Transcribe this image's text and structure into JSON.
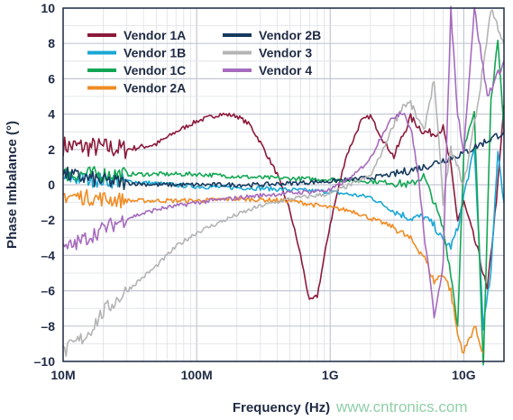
{
  "chart_data": {
    "type": "line",
    "xlabel": "Frequency (Hz)",
    "ylabel": "Phase Imbalance (°)",
    "xscale": "log",
    "xlim": [
      10000000,
      20000000000
    ],
    "ylim": [
      -10,
      10
    ],
    "grid": true,
    "legend_placement": "top-left",
    "x_ticks": [
      {
        "value": 10000000,
        "label": "10M"
      },
      {
        "value": 100000000,
        "label": "100M"
      },
      {
        "value": 1000000000,
        "label": "1G"
      },
      {
        "value": 10000000000,
        "label": "10G"
      }
    ],
    "y_ticks": [
      {
        "value": 10,
        "label": "10"
      },
      {
        "value": 8,
        "label": "8"
      },
      {
        "value": 6,
        "label": "6"
      },
      {
        "value": 4,
        "label": "4"
      },
      {
        "value": 2,
        "label": "2"
      },
      {
        "value": 0,
        "label": "0"
      },
      {
        "value": -2,
        "label": "–2"
      },
      {
        "value": -4,
        "label": "–4"
      },
      {
        "value": -6,
        "label": "–6"
      },
      {
        "value": -8,
        "label": "–8"
      },
      {
        "value": -10,
        "label": "–10"
      }
    ],
    "series": [
      {
        "name": "Vendor 1A",
        "color": "#8b1a3a",
        "points": [
          [
            10000000.0,
            2.2
          ],
          [
            20000000.0,
            2.1
          ],
          [
            30000000.0,
            2.0
          ],
          [
            50000000.0,
            2.3
          ],
          [
            70000000.0,
            3.0
          ],
          [
            100000000.0,
            3.6
          ],
          [
            150000000.0,
            4.0
          ],
          [
            200000000.0,
            3.9
          ],
          [
            250000000.0,
            3.4
          ],
          [
            300000000.0,
            2.4
          ],
          [
            400000000.0,
            0.6
          ],
          [
            500000000.0,
            -1.5
          ],
          [
            600000000.0,
            -4.0
          ],
          [
            700000000.0,
            -6.6
          ],
          [
            800000000.0,
            -6.3
          ],
          [
            1000000000.0,
            -2.2
          ],
          [
            1300000000.0,
            1.5
          ],
          [
            1700000000.0,
            3.6
          ],
          [
            2000000000.0,
            3.9
          ],
          [
            2500000000.0,
            2.5
          ],
          [
            3000000000.0,
            1.6
          ],
          [
            3500000000.0,
            2.8
          ],
          [
            4000000000.0,
            3.8
          ],
          [
            5000000000.0,
            3.0
          ],
          [
            6000000000.0,
            2.9
          ],
          [
            7000000000.0,
            3.2
          ],
          [
            8000000000.0,
            1.0
          ],
          [
            9000000000.0,
            -2.0
          ],
          [
            10000000000.0,
            -1.0
          ],
          [
            13000000000.0,
            -4.0
          ],
          [
            15000000000.0,
            -6.0
          ],
          [
            18000000000.0,
            0.0
          ],
          [
            20000000000.0,
            4.5
          ]
        ]
      },
      {
        "name": "Vendor 1B",
        "color": "#1aa7d6",
        "points": [
          [
            10000000.0,
            0.4
          ],
          [
            30000000.0,
            0.2
          ],
          [
            100000000.0,
            -0.1
          ],
          [
            300000000.0,
            -0.2
          ],
          [
            1000000000.0,
            -0.4
          ],
          [
            2000000000.0,
            -0.7
          ],
          [
            3000000000.0,
            -1.5
          ],
          [
            4000000000.0,
            -1.9
          ],
          [
            5000000000.0,
            -1.8
          ],
          [
            6000000000.0,
            -2.3
          ],
          [
            7000000000.0,
            -3.2
          ],
          [
            8000000000.0,
            -3.5
          ],
          [
            9000000000.0,
            -2.5
          ],
          [
            10000000000.0,
            -0.6
          ],
          [
            12000000000.0,
            2.0
          ],
          [
            14000000000.0,
            -8.0
          ],
          [
            16000000000.0,
            -5.0
          ],
          [
            18000000000.0,
            2.0
          ],
          [
            20000000000.0,
            -1.0
          ]
        ]
      },
      {
        "name": "Vendor 1C",
        "color": "#13a653",
        "points": [
          [
            10000000.0,
            0.6
          ],
          [
            30000000.0,
            0.6
          ],
          [
            100000000.0,
            0.6
          ],
          [
            300000000.0,
            0.4
          ],
          [
            1000000000.0,
            0.3
          ],
          [
            2000000000.0,
            0.2
          ],
          [
            3000000000.0,
            0.1
          ],
          [
            4000000000.0,
            0.0
          ],
          [
            5000000000.0,
            0.5
          ],
          [
            6000000000.0,
            -1.0
          ],
          [
            7000000000.0,
            -2.5
          ],
          [
            8000000000.0,
            -5.0
          ],
          [
            9000000000.0,
            -8.0
          ],
          [
            10000000000.0,
            2.0
          ],
          [
            12000000000.0,
            4.0
          ],
          [
            14000000000.0,
            -10
          ],
          [
            16000000000.0,
            5.0
          ],
          [
            18000000000.0,
            8.0
          ],
          [
            20000000000.0,
            3.0
          ]
        ]
      },
      {
        "name": "Vendor 2A",
        "color": "#f08c23",
        "points": [
          [
            10000000.0,
            -0.6
          ],
          [
            30000000.0,
            -0.9
          ],
          [
            100000000.0,
            -0.9
          ],
          [
            200000000.0,
            -0.8
          ],
          [
            500000000.0,
            -0.9
          ],
          [
            1000000000.0,
            -1.3
          ],
          [
            1500000000.0,
            -1.5
          ],
          [
            2000000000.0,
            -1.9
          ],
          [
            3000000000.0,
            -2.4
          ],
          [
            4000000000.0,
            -3.1
          ],
          [
            5000000000.0,
            -4.0
          ],
          [
            6000000000.0,
            -5.5
          ],
          [
            7000000000.0,
            -5.0
          ],
          [
            8000000000.0,
            -6.0
          ],
          [
            9000000000.0,
            -8.5
          ],
          [
            10000000000.0,
            -9.5
          ],
          [
            12000000000.0,
            -8.0
          ],
          [
            14000000000.0,
            -9.5
          ]
        ]
      },
      {
        "name": "Vendor 2B",
        "color": "#163a5e",
        "points": [
          [
            10000000.0,
            0.6
          ],
          [
            20000000.0,
            0.2
          ],
          [
            50000000.0,
            0.0
          ],
          [
            100000000.0,
            0.0
          ],
          [
            300000000.0,
            0.0
          ],
          [
            1000000000.0,
            0.2
          ],
          [
            2000000000.0,
            0.4
          ],
          [
            3000000000.0,
            0.6
          ],
          [
            5000000000.0,
            1.0
          ],
          [
            7000000000.0,
            1.4
          ],
          [
            10000000000.0,
            1.8
          ],
          [
            15000000000.0,
            2.5
          ],
          [
            20000000000.0,
            3.0
          ]
        ]
      },
      {
        "name": "Vendor 3",
        "color": "#b4b4b4",
        "points": [
          [
            10000000.0,
            -9.5
          ],
          [
            15000000.0,
            -8.5
          ],
          [
            20000000.0,
            -7.2
          ],
          [
            30000000.0,
            -6.0
          ],
          [
            50000000.0,
            -4.6
          ],
          [
            70000000.0,
            -3.5
          ],
          [
            100000000.0,
            -2.7
          ],
          [
            200000000.0,
            -1.7
          ],
          [
            300000000.0,
            -1.2
          ],
          [
            500000000.0,
            -0.8
          ],
          [
            1000000000.0,
            -0.5
          ],
          [
            2000000000.0,
            0.5
          ],
          [
            2500000000.0,
            2.0
          ],
          [
            3000000000.0,
            3.5
          ],
          [
            3500000000.0,
            4.5
          ],
          [
            4000000000.0,
            4.6
          ],
          [
            5000000000.0,
            3.0
          ],
          [
            6000000000.0,
            6.0
          ],
          [
            7000000000.0,
            -1.0
          ],
          [
            8000000000.0,
            2.0
          ],
          [
            10000000000.0,
            0.0
          ],
          [
            13000000000.0,
            5.0
          ],
          [
            16000000000.0,
            10
          ],
          [
            20000000000.0,
            8.0
          ]
        ]
      },
      {
        "name": "Vendor 4",
        "color": "#a66bbe",
        "points": [
          [
            10000000.0,
            -3.7
          ],
          [
            15000000.0,
            -3.0
          ],
          [
            20000000.0,
            -2.5
          ],
          [
            30000000.0,
            -1.9
          ],
          [
            50000000.0,
            -1.4
          ],
          [
            100000000.0,
            -1.0
          ],
          [
            300000000.0,
            -0.6
          ],
          [
            1000000000.0,
            -0.3
          ],
          [
            1500000000.0,
            0.5
          ],
          [
            2000000000.0,
            1.5
          ],
          [
            2500000000.0,
            3.0
          ],
          [
            3000000000.0,
            3.9
          ],
          [
            3500000000.0,
            4.2
          ],
          [
            4000000000.0,
            3.2
          ],
          [
            4500000000.0,
            1.0
          ],
          [
            5000000000.0,
            -2.5
          ],
          [
            6000000000.0,
            -7.4
          ],
          [
            7000000000.0,
            -4.5
          ],
          [
            8000000000.0,
            9.9
          ],
          [
            9000000000.0,
            4.0
          ],
          [
            10000000000.0,
            2.0
          ],
          [
            12000000000.0,
            10
          ],
          [
            15000000000.0,
            5.0
          ],
          [
            20000000000.0,
            7.0
          ]
        ]
      }
    ]
  },
  "watermark": "www.cntronics.com"
}
